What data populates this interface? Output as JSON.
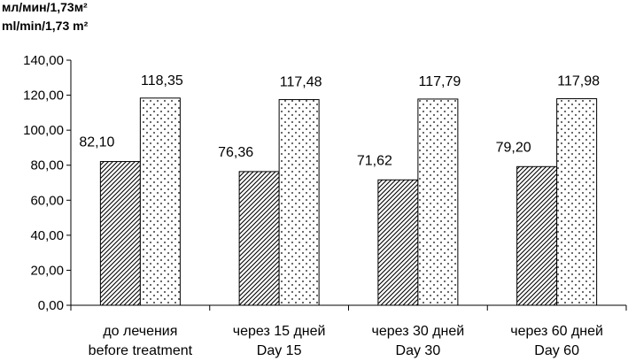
{
  "chart_data": {
    "type": "bar",
    "ylabel_ru": "мл/мин/1,73м²",
    "ylabel_en": "ml/min/1,73 m²",
    "categories": [
      [
        "до лечения",
        "before treatment"
      ],
      [
        "через 15 дней",
        "Day 15"
      ],
      [
        "через 30 дней",
        "Day 30"
      ],
      [
        "через 60 дней",
        "Day 60"
      ]
    ],
    "series": [
      {
        "values": [
          82.1,
          76.36,
          71.62,
          79.2
        ],
        "labels": [
          "82,10",
          "76,36",
          "71,62",
          "79,20"
        ],
        "pattern": "diagonal-hatch"
      },
      {
        "values": [
          118.35,
          117.48,
          117.79,
          117.98
        ],
        "labels": [
          "118,35",
          "117,48",
          "117,79",
          "117,98"
        ],
        "pattern": "dots"
      }
    ],
    "ylim": [
      0,
      140
    ],
    "yticks": [
      "0,00",
      "20,00",
      "40,00",
      "60,00",
      "80,00",
      "100,00",
      "120,00",
      "140,00"
    ],
    "grid": false,
    "legend": "none"
  }
}
